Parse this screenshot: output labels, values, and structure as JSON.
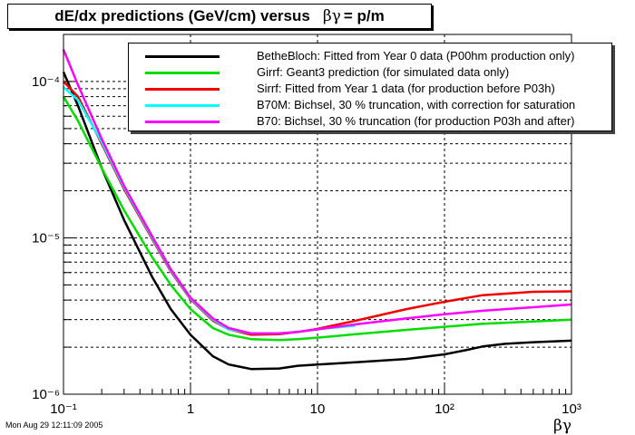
{
  "title": {
    "text": "dE/dx predictions (GeV/cm) versus",
    "symbol": "βγ",
    "suffix": "= p/m"
  },
  "timestamp": "Mon Aug 29 12:11:09 2005",
  "chart_data": {
    "type": "line",
    "title": "dE/dx predictions (GeV/cm) versus βγ = p/m",
    "xlabel": "βγ",
    "ylabel": "",
    "xscale": "log",
    "yscale": "log",
    "xlim": [
      0.1,
      1000
    ],
    "ylim": [
      1e-06,
      0.0002
    ],
    "grid": true,
    "legend_position": "top-right",
    "x_ticks": [
      {
        "value": 0.1,
        "label": "10⁻¹"
      },
      {
        "value": 1,
        "label": "1"
      },
      {
        "value": 10,
        "label": "10"
      },
      {
        "value": 100,
        "label": "10²"
      },
      {
        "value": 1000,
        "label": "10³"
      }
    ],
    "y_ticks": [
      {
        "value": 1e-06,
        "label": "10⁻⁶"
      },
      {
        "value": 1e-05,
        "label": "10⁻⁵"
      },
      {
        "value": 0.0001,
        "label": "10⁻⁴"
      }
    ],
    "series": [
      {
        "name": "BetheBloch: Fitted from Year 0 data (P00hm production only)",
        "color": "#000000",
        "x": [
          0.1,
          0.13,
          0.2,
          0.3,
          0.5,
          0.7,
          1,
          1.5,
          2,
          3,
          5,
          7,
          10,
          20,
          50,
          100,
          150,
          200,
          300,
          500,
          1000
        ],
        "y": [
          0.000115,
          7e-05,
          2.8e-05,
          1.3e-05,
          5.6e-06,
          3.5e-06,
          2.4e-06,
          1.75e-06,
          1.55e-06,
          1.45e-06,
          1.46e-06,
          1.52e-06,
          1.55e-06,
          1.6e-06,
          1.68e-06,
          1.8e-06,
          1.92e-06,
          2.02e-06,
          2.1e-06,
          2.15e-06,
          2.2e-06
        ]
      },
      {
        "name": "Girrf: Geant3 prediction (for simulated data only)",
        "color": "#00dd00",
        "x": [
          0.1,
          0.13,
          0.2,
          0.3,
          0.5,
          0.7,
          1,
          1.5,
          2,
          3,
          5,
          7,
          10,
          20,
          50,
          100,
          200,
          500,
          1000
        ],
        "y": [
          8e-05,
          5.6e-05,
          2.8e-05,
          1.5e-05,
          7.5e-06,
          5e-06,
          3.5e-06,
          2.65e-06,
          2.4e-06,
          2.25e-06,
          2.22e-06,
          2.25e-06,
          2.3e-06,
          2.42e-06,
          2.58e-06,
          2.7e-06,
          2.82e-06,
          2.92e-06,
          3e-06
        ]
      },
      {
        "name": "Sirrf: Fitted from Year 1 data (for production before P03h)",
        "color": "#ee0000",
        "x": [
          0.1,
          0.13,
          0.2,
          0.3,
          0.5,
          0.7,
          1,
          1.5,
          2,
          3,
          5,
          7,
          10,
          20,
          50,
          100,
          200,
          500,
          1000
        ],
        "y": [
          0.0001,
          8e-05,
          4e-05,
          2.05e-05,
          9.8e-06,
          6.1e-06,
          4.05e-06,
          2.95e-06,
          2.6e-06,
          2.4e-06,
          2.42e-06,
          2.5e-06,
          2.62e-06,
          2.95e-06,
          3.5e-06,
          3.9e-06,
          4.3e-06,
          4.52e-06,
          4.55e-06
        ]
      },
      {
        "name": "B70M: Bichsel, 30 % truncation, with correction for saturation",
        "color": "#00ffff",
        "x": [
          0.1,
          0.13,
          0.2,
          0.3,
          0.5,
          0.7,
          1,
          1.5,
          2,
          3,
          5,
          7,
          10,
          20
        ],
        "y": [
          9.2e-05,
          7.6e-05,
          4.1e-05,
          2.1e-05,
          1e-05,
          6.2e-06,
          4.1e-06,
          3e-06,
          2.6e-06,
          2.45e-06,
          2.45e-06,
          2.5e-06,
          2.6e-06,
          2.75e-06
        ]
      },
      {
        "name": "B70: Bichsel, 30 % truncation (for production P03h and after)",
        "color": "#ff00ff",
        "x": [
          0.1,
          0.13,
          0.2,
          0.3,
          0.5,
          0.7,
          1,
          1.5,
          2,
          3,
          5,
          7,
          10,
          20,
          50,
          100,
          200,
          500,
          1000
        ],
        "y": [
          0.00016,
          9.5e-05,
          4.3e-05,
          2.15e-05,
          1.02e-05,
          6.3e-06,
          4.15e-06,
          3.05e-06,
          2.65e-06,
          2.45e-06,
          2.45e-06,
          2.5e-06,
          2.6e-06,
          2.8e-06,
          3.05e-06,
          3.25e-06,
          3.42e-06,
          3.6e-06,
          3.75e-06
        ]
      }
    ]
  }
}
